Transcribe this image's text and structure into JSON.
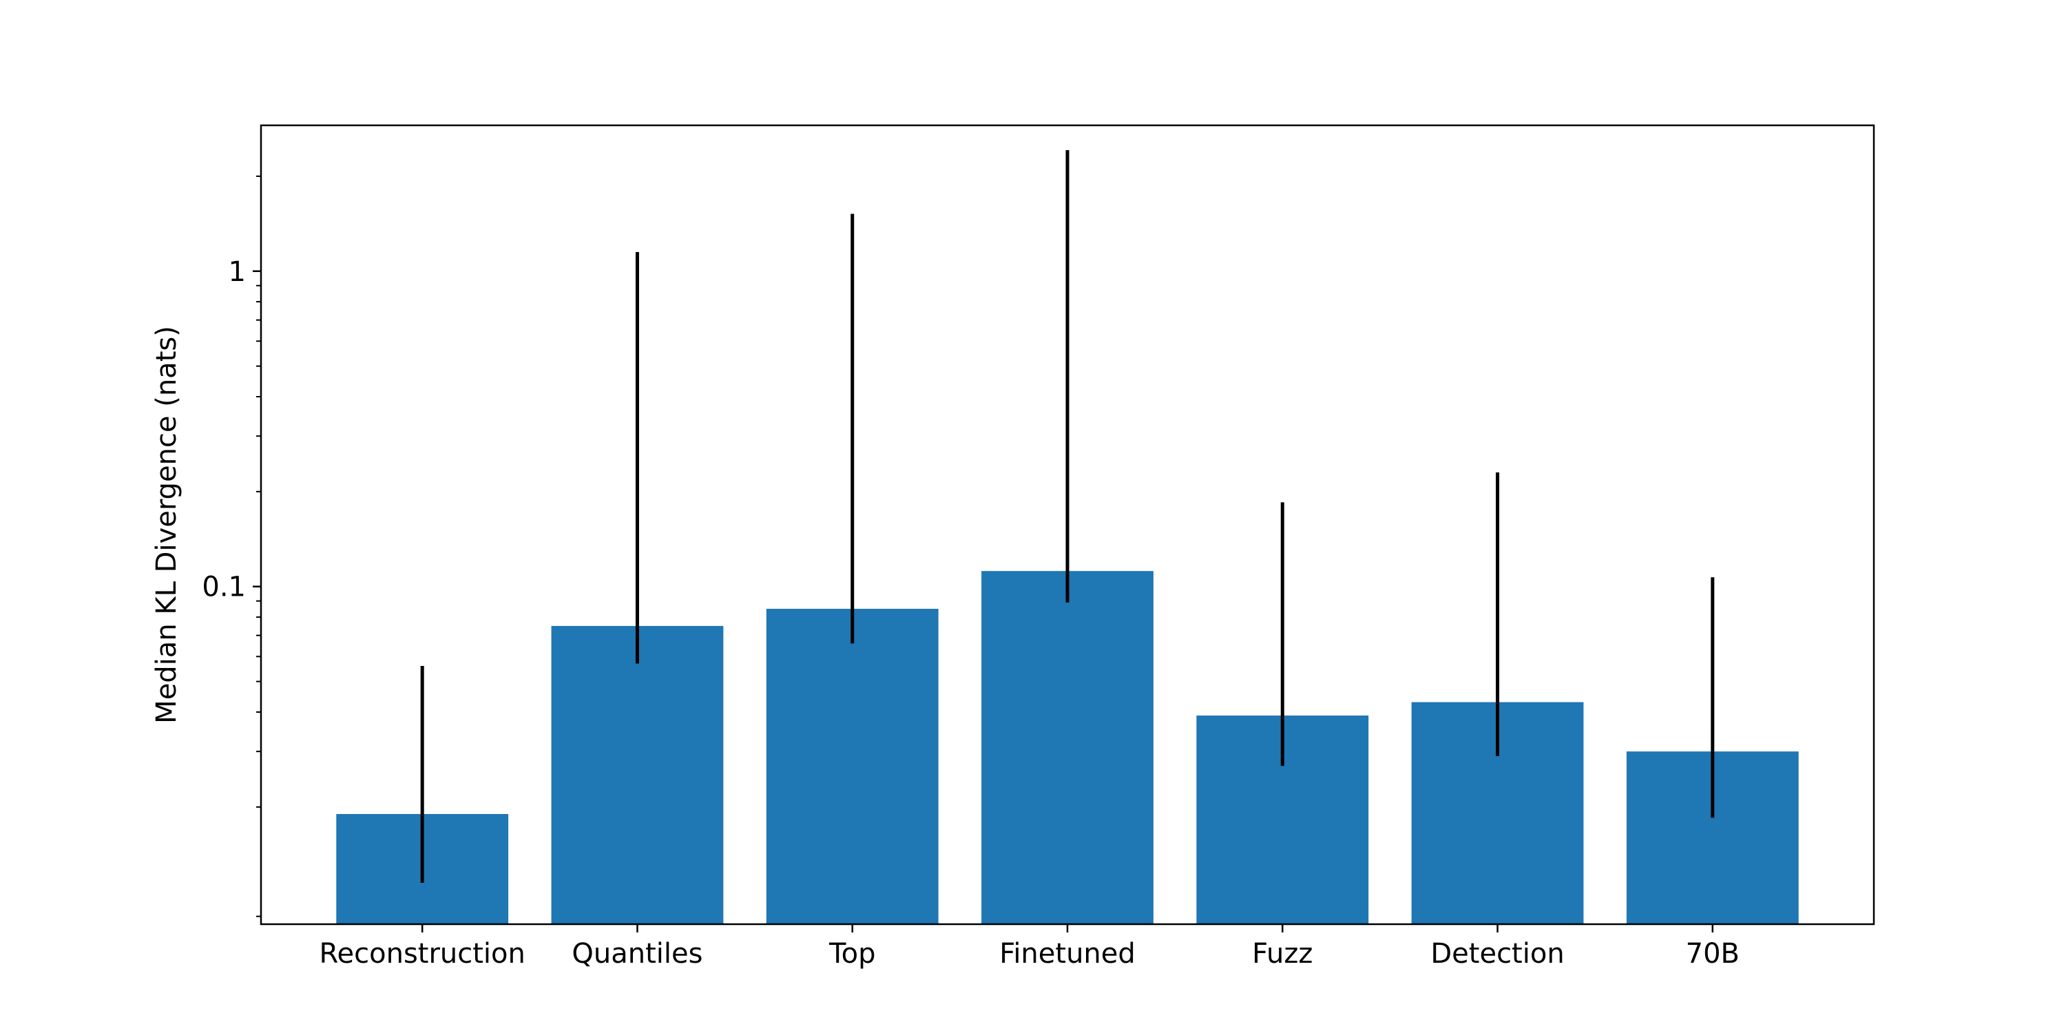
{
  "chart_data": {
    "type": "bar",
    "title": "",
    "xlabel": "",
    "ylabel": "Median KL Divergence (nats)",
    "yscale": "log",
    "ylim": [
      0.0085,
      2.9
    ],
    "grid": false,
    "legend": "none",
    "bar_color": "#1f77b4",
    "errorbar_color": "#000000",
    "categories": [
      "Reconstruction",
      "Quantiles",
      "Top",
      "Finetuned",
      "Fuzz",
      "Detection",
      "70B"
    ],
    "values": [
      0.019,
      0.075,
      0.085,
      0.112,
      0.039,
      0.043,
      0.03
    ],
    "error_low": [
      0.0115,
      0.057,
      0.066,
      0.089,
      0.027,
      0.029,
      0.0185
    ],
    "error_high": [
      0.056,
      1.15,
      1.52,
      2.42,
      0.185,
      0.23,
      0.107
    ],
    "y_major_ticks": [
      {
        "value": 0.1,
        "label": "0.1"
      },
      {
        "value": 1,
        "label": "1"
      }
    ],
    "y_minor_ticks": [
      0.009,
      0.02,
      0.03,
      0.04,
      0.05,
      0.06,
      0.07,
      0.08,
      0.09,
      0.2,
      0.3,
      0.4,
      0.5,
      0.6,
      0.7,
      0.8,
      0.9,
      2
    ]
  }
}
